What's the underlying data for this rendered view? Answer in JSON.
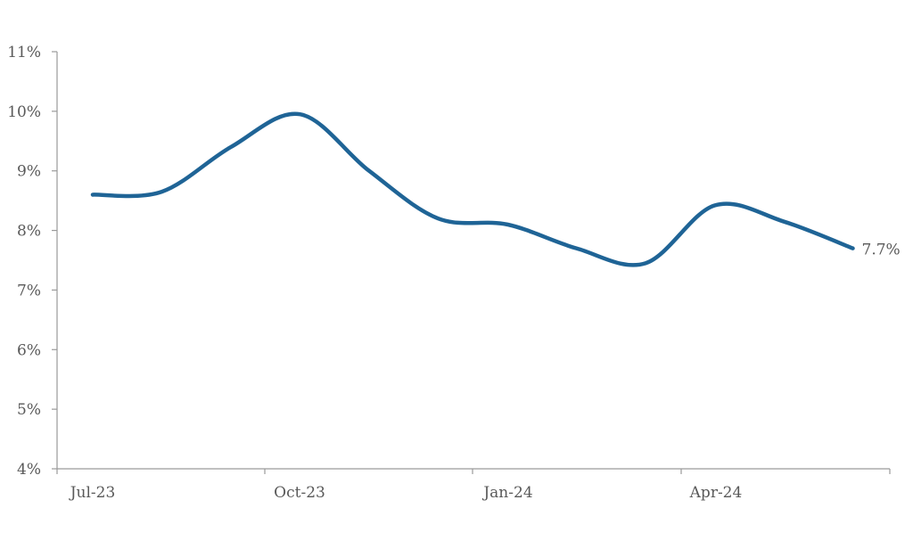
{
  "chart_data": {
    "type": "line",
    "ylim": [
      4,
      11
    ],
    "y_ticks": [
      {
        "value": 11,
        "label": "11%"
      },
      {
        "value": 10,
        "label": "10%"
      },
      {
        "value": 9,
        "label": "9%"
      },
      {
        "value": 8,
        "label": "8%"
      },
      {
        "value": 7,
        "label": "7%"
      },
      {
        "value": 6,
        "label": "6%"
      },
      {
        "value": 5,
        "label": "5%"
      },
      {
        "value": 4,
        "label": "4%"
      }
    ],
    "x_ticks": [
      "Jul-23",
      "Oct-23",
      "Jan-24",
      "Apr-24"
    ],
    "x": [
      "Jul-23",
      "Aug-23",
      "Sep-23",
      "Oct-23",
      "Nov-23",
      "Dec-23",
      "Jan-24",
      "Feb-24",
      "Mar-24",
      "Apr-24",
      "May-24",
      "Jun-24"
    ],
    "series": [
      {
        "color": "#1f6496",
        "values": [
          8.6,
          8.65,
          9.4,
          9.95,
          9.0,
          8.2,
          8.1,
          7.7,
          7.45,
          8.42,
          8.15,
          7.7
        ]
      }
    ],
    "end_label": "7.7%",
    "grid": false
  }
}
